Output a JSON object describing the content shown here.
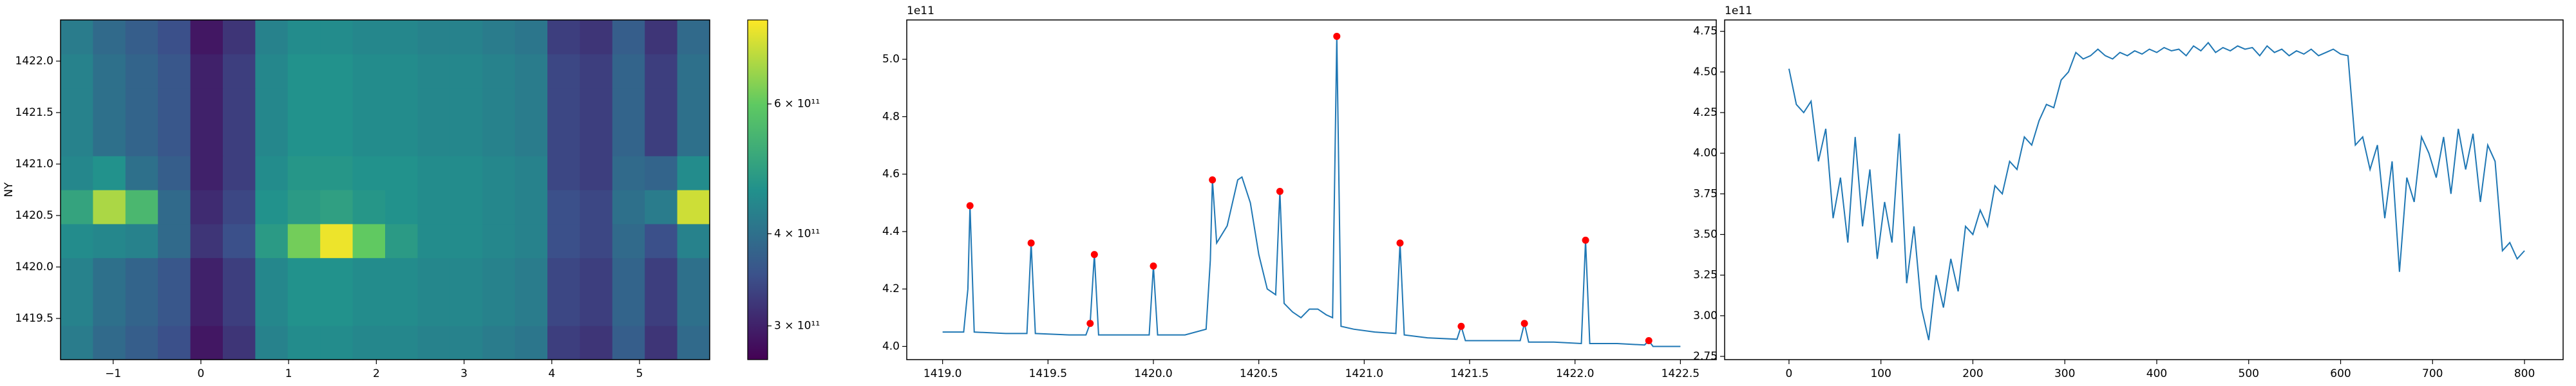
{
  "chart_data": [
    {
      "type": "heatmap",
      "ylabel": "NY",
      "log_color": true,
      "colormap": "viridis",
      "x": [
        -1.6,
        -1.23,
        -0.86,
        -0.49,
        -0.12,
        0.25,
        0.62,
        0.99,
        1.36,
        1.73,
        2.1,
        2.47,
        2.84,
        3.21,
        3.58,
        3.95,
        4.32,
        4.69,
        5.06,
        5.43
      ],
      "y": [
        1419.27,
        1419.6,
        1419.93,
        1420.26,
        1420.59,
        1420.92,
        1421.25,
        1421.58,
        1421.91,
        1422.24
      ],
      "z": [
        [
          420000000000.0,
          390000000000.0,
          370000000000.0,
          350000000000.0,
          290000000000.0,
          320000000000.0,
          430000000000.0,
          450000000000.0,
          450000000000.0,
          440000000000.0,
          440000000000.0,
          430000000000.0,
          430000000000.0,
          420000000000.0,
          410000000000.0,
          330000000000.0,
          320000000000.0,
          370000000000.0,
          320000000000.0,
          390000000000.0
        ],
        [
          430000000000.0,
          400000000000.0,
          380000000000.0,
          360000000000.0,
          300000000000.0,
          330000000000.0,
          440000000000.0,
          460000000000.0,
          460000000000.0,
          450000000000.0,
          450000000000.0,
          440000000000.0,
          440000000000.0,
          430000000000.0,
          420000000000.0,
          340000000000.0,
          330000000000.0,
          380000000000.0,
          330000000000.0,
          400000000000.0
        ],
        [
          430000000000.0,
          400000000000.0,
          380000000000.0,
          360000000000.0,
          300000000000.0,
          330000000000.0,
          440000000000.0,
          460000000000.0,
          460000000000.0,
          450000000000.0,
          450000000000.0,
          440000000000.0,
          440000000000.0,
          430000000000.0,
          420000000000.0,
          340000000000.0,
          330000000000.0,
          380000000000.0,
          330000000000.0,
          400000000000.0
        ],
        [
          450000000000.0,
          440000000000.0,
          430000000000.0,
          390000000000.0,
          320000000000.0,
          350000000000.0,
          480000000000.0,
          620000000000.0,
          760000000000.0,
          600000000000.0,
          480000000000.0,
          450000000000.0,
          450000000000.0,
          440000000000.0,
          430000000000.0,
          350000000000.0,
          340000000000.0,
          390000000000.0,
          350000000000.0,
          430000000000.0
        ],
        [
          500000000000.0,
          680000000000.0,
          550000000000.0,
          390000000000.0,
          310000000000.0,
          340000000000.0,
          460000000000.0,
          480000000000.0,
          490000000000.0,
          470000000000.0,
          460000000000.0,
          450000000000.0,
          450000000000.0,
          440000000000.0,
          430000000000.0,
          350000000000.0,
          340000000000.0,
          400000000000.0,
          420000000000.0,
          720000000000.0
        ],
        [
          440000000000.0,
          460000000000.0,
          400000000000.0,
          370000000000.0,
          300000000000.0,
          330000000000.0,
          450000000000.0,
          470000000000.0,
          470000000000.0,
          460000000000.0,
          460000000000.0,
          450000000000.0,
          450000000000.0,
          440000000000.0,
          430000000000.0,
          340000000000.0,
          330000000000.0,
          390000000000.0,
          380000000000.0,
          450000000000.0
        ],
        [
          430000000000.0,
          400000000000.0,
          380000000000.0,
          360000000000.0,
          300000000000.0,
          330000000000.0,
          440000000000.0,
          460000000000.0,
          460000000000.0,
          450000000000.0,
          450000000000.0,
          440000000000.0,
          440000000000.0,
          430000000000.0,
          420000000000.0,
          340000000000.0,
          330000000000.0,
          380000000000.0,
          330000000000.0,
          400000000000.0
        ],
        [
          430000000000.0,
          400000000000.0,
          380000000000.0,
          360000000000.0,
          300000000000.0,
          330000000000.0,
          440000000000.0,
          460000000000.0,
          460000000000.0,
          450000000000.0,
          450000000000.0,
          440000000000.0,
          440000000000.0,
          430000000000.0,
          420000000000.0,
          340000000000.0,
          330000000000.0,
          380000000000.0,
          330000000000.0,
          400000000000.0
        ],
        [
          430000000000.0,
          400000000000.0,
          380000000000.0,
          360000000000.0,
          300000000000.0,
          330000000000.0,
          440000000000.0,
          460000000000.0,
          460000000000.0,
          450000000000.0,
          450000000000.0,
          440000000000.0,
          440000000000.0,
          430000000000.0,
          420000000000.0,
          340000000000.0,
          330000000000.0,
          380000000000.0,
          330000000000.0,
          400000000000.0
        ],
        [
          420000000000.0,
          390000000000.0,
          370000000000.0,
          350000000000.0,
          290000000000.0,
          320000000000.0,
          430000000000.0,
          450000000000.0,
          450000000000.0,
          440000000000.0,
          440000000000.0,
          430000000000.0,
          430000000000.0,
          420000000000.0,
          410000000000.0,
          330000000000.0,
          320000000000.0,
          370000000000.0,
          320000000000.0,
          390000000000.0
        ]
      ],
      "xlim": [
        -1.6,
        5.8
      ],
      "ylim": [
        1419.1,
        1422.4
      ],
      "xticks": [
        {
          "value": -1,
          "label": "−1"
        },
        0,
        1,
        2,
        3,
        4,
        5
      ],
      "yticks": [
        1419.5,
        {
          "value": 1420,
          "label": "1420.0"
        },
        1420.5,
        {
          "value": 1421,
          "label": "1421.0"
        },
        1421.5,
        {
          "value": 1422,
          "label": "1422.0"
        }
      ],
      "clim": [
        270000000000.0,
        780000000000.0
      ],
      "cticks": [
        {
          "value": 300000000000.0,
          "label": "3 × 10¹¹"
        },
        {
          "value": 400000000000.0,
          "label": "4 × 10¹¹"
        },
        {
          "value": 600000000000.0,
          "label": "6 × 10¹¹"
        }
      ]
    },
    {
      "type": "line",
      "y_offset_label": "1e11",
      "color": "#1f77b4",
      "x": [
        1419.0,
        1419.1,
        1419.12,
        1419.13,
        1419.15,
        1419.3,
        1419.4,
        1419.41,
        1419.42,
        1419.44,
        1419.6,
        1419.68,
        1419.7,
        1419.72,
        1419.74,
        1419.9,
        1419.98,
        1420.0,
        1420.02,
        1420.15,
        1420.25,
        1420.27,
        1420.28,
        1420.3,
        1420.35,
        1420.4,
        1420.42,
        1420.46,
        1420.5,
        1420.54,
        1420.58,
        1420.6,
        1420.62,
        1420.66,
        1420.7,
        1420.74,
        1420.78,
        1420.82,
        1420.85,
        1420.87,
        1420.89,
        1420.95,
        1421.05,
        1421.15,
        1421.17,
        1421.19,
        1421.3,
        1421.44,
        1421.46,
        1421.48,
        1421.6,
        1421.74,
        1421.76,
        1421.78,
        1421.9,
        1422.03,
        1422.05,
        1422.07,
        1422.2,
        1422.33,
        1422.35,
        1422.37,
        1422.5
      ],
      "values": [
        4.05,
        4.05,
        4.2,
        4.49,
        4.05,
        4.045,
        4.045,
        4.2,
        4.36,
        4.045,
        4.04,
        4.04,
        4.08,
        4.32,
        4.04,
        4.04,
        4.04,
        4.28,
        4.04,
        4.04,
        4.06,
        4.3,
        4.58,
        4.36,
        4.42,
        4.58,
        4.59,
        4.5,
        4.32,
        4.2,
        4.18,
        4.54,
        4.15,
        4.12,
        4.1,
        4.13,
        4.13,
        4.11,
        4.1,
        5.08,
        4.07,
        4.06,
        4.05,
        4.045,
        4.36,
        4.04,
        4.03,
        4.025,
        4.07,
        4.02,
        4.02,
        4.02,
        4.08,
        4.015,
        4.015,
        4.01,
        4.37,
        4.01,
        4.01,
        4.005,
        4.02,
        4.0,
        4.0
      ],
      "markers": {
        "color": "#ff0000",
        "x": [
          1419.13,
          1419.42,
          1419.7,
          1419.72,
          1420.0,
          1420.28,
          1420.6,
          1420.87,
          1421.17,
          1421.46,
          1421.76,
          1422.05,
          1422.35
        ],
        "values": [
          4.49,
          4.36,
          4.08,
          4.32,
          4.28,
          4.58,
          4.54,
          5.08,
          4.36,
          4.07,
          4.08,
          4.37,
          4.02
        ]
      },
      "xlim": [
        1418.83,
        1422.67
      ],
      "ylim": [
        3.954,
        5.137
      ],
      "xticks": [
        {
          "value": 1419,
          "label": "1419.0"
        },
        1419.5,
        {
          "value": 1420,
          "label": "1420.0"
        },
        1420.5,
        {
          "value": 1421,
          "label": "1421.0"
        },
        1421.5,
        {
          "value": 1422,
          "label": "1422.0"
        },
        1422.5
      ],
      "yticks": [
        {
          "value": 4,
          "label": "4.0"
        },
        4.2,
        4.4,
        4.6,
        4.8,
        {
          "value": 5,
          "label": "5.0"
        }
      ]
    },
    {
      "type": "line",
      "y_offset_label": "1e11",
      "color": "#1f77b4",
      "x": [
        0,
        8,
        16,
        24,
        32,
        40,
        48,
        56,
        64,
        72,
        80,
        88,
        96,
        104,
        112,
        120,
        128,
        136,
        144,
        152,
        160,
        168,
        176,
        184,
        192,
        200,
        208,
        216,
        224,
        232,
        240,
        248,
        256,
        264,
        272,
        280,
        288,
        296,
        304,
        312,
        320,
        328,
        336,
        344,
        352,
        360,
        368,
        376,
        384,
        392,
        400,
        408,
        416,
        424,
        432,
        440,
        448,
        456,
        464,
        472,
        480,
        488,
        496,
        504,
        512,
        520,
        528,
        536,
        544,
        552,
        560,
        568,
        576,
        584,
        592,
        600,
        608,
        616,
        624,
        632,
        640,
        648,
        656,
        664,
        672,
        680,
        688,
        696,
        704,
        712,
        720,
        728,
        736,
        744,
        752,
        760,
        768,
        776,
        784,
        792,
        800
      ],
      "values": [
        4.52,
        4.3,
        4.25,
        4.32,
        3.95,
        4.15,
        3.6,
        3.85,
        3.45,
        4.1,
        3.55,
        3.9,
        3.35,
        3.7,
        3.45,
        4.12,
        3.2,
        3.55,
        3.05,
        2.85,
        3.25,
        3.05,
        3.35,
        3.15,
        3.55,
        3.5,
        3.65,
        3.55,
        3.8,
        3.75,
        3.95,
        3.9,
        4.1,
        4.05,
        4.2,
        4.3,
        4.28,
        4.45,
        4.5,
        4.62,
        4.58,
        4.6,
        4.64,
        4.6,
        4.58,
        4.62,
        4.6,
        4.63,
        4.61,
        4.64,
        4.62,
        4.65,
        4.63,
        4.64,
        4.6,
        4.66,
        4.63,
        4.68,
        4.62,
        4.65,
        4.63,
        4.66,
        4.64,
        4.65,
        4.6,
        4.66,
        4.62,
        4.64,
        4.6,
        4.63,
        4.61,
        4.64,
        4.6,
        4.62,
        4.64,
        4.61,
        4.6,
        4.05,
        4.1,
        3.9,
        4.05,
        3.6,
        3.95,
        3.27,
        3.85,
        3.7,
        4.1,
        4.0,
        3.85,
        4.1,
        3.75,
        4.15,
        3.9,
        4.12,
        3.7,
        4.05,
        3.95,
        3.4,
        3.45,
        3.35,
        3.4
      ],
      "xlim": [
        -70,
        842
      ],
      "ylim": [
        2.73,
        4.82
      ],
      "xticks": [
        0,
        100,
        200,
        300,
        400,
        500,
        600,
        700,
        800
      ],
      "yticks": [
        2.75,
        {
          "value": 3,
          "label": "3.00"
        },
        3.25,
        {
          "value": 3.5,
          "label": "3.50"
        },
        3.75,
        {
          "value": 4,
          "label": "4.00"
        },
        4.25,
        {
          "value": 4.5,
          "label": "4.50"
        },
        4.75
      ]
    }
  ]
}
